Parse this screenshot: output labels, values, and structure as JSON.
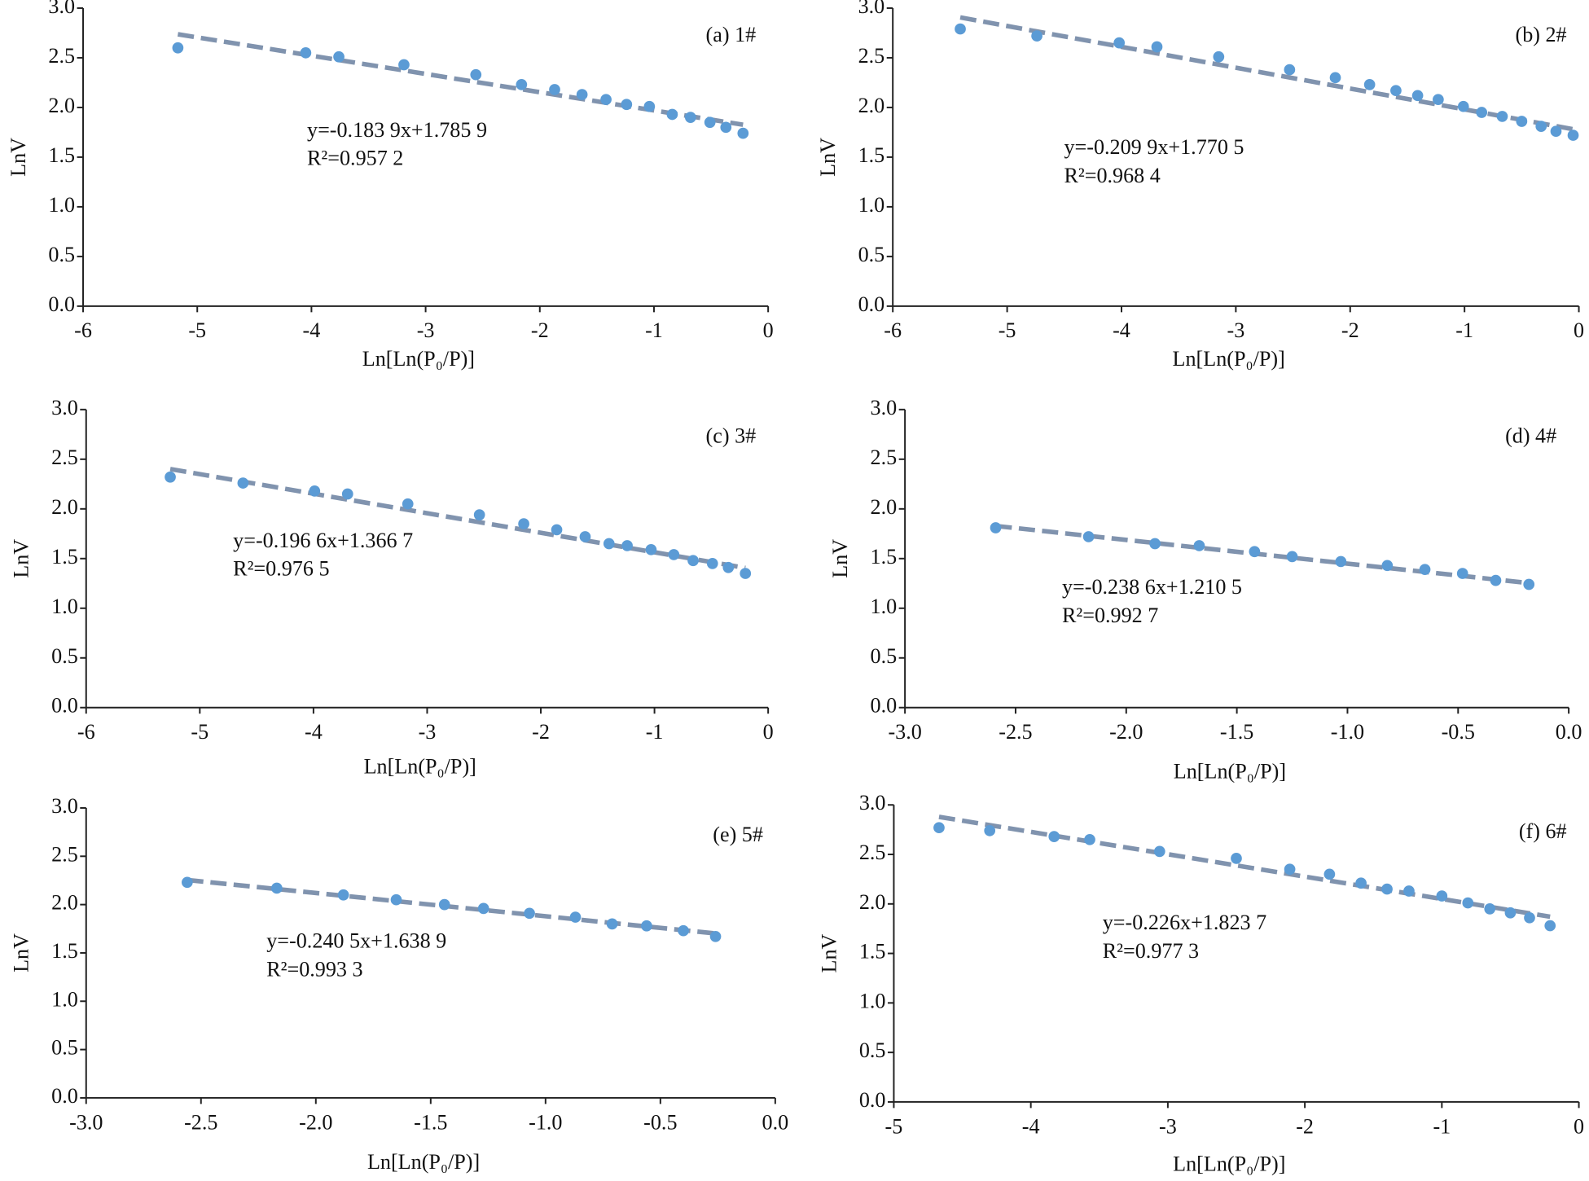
{
  "chart_data": [
    {
      "type": "scatter",
      "title": "(a) 1#",
      "x_label": "Ln[Ln(P₀/P)]",
      "y_label": "LnV",
      "equation": "y=-0.183 9x+1.785 9",
      "r_squared": "R²=0.957 2",
      "trendline": {
        "slope": -0.1839,
        "intercept": 1.7859
      },
      "color": "#5b9bd5",
      "trendline_color": "#8093ae",
      "x": [
        -5.17,
        -4.05,
        -3.76,
        -3.19,
        -2.56,
        -2.16,
        -1.87,
        -1.63,
        -1.42,
        -1.24,
        -1.04,
        -0.84,
        -0.68,
        -0.51,
        -0.37,
        -0.22
      ],
      "values": [
        2.6,
        2.55,
        2.51,
        2.43,
        2.33,
        2.23,
        2.18,
        2.13,
        2.08,
        2.03,
        2.01,
        1.93,
        1.9,
        1.85,
        1.8,
        1.74
      ],
      "xlim": [
        -6,
        0
      ],
      "ylim": [
        0,
        3
      ],
      "xticks": [
        -6,
        -5,
        -4,
        -3,
        -2,
        -1,
        0
      ],
      "yticks": [
        {
          "value": 0,
          "label": "0.0"
        },
        {
          "value": 0.5,
          "label": "0.5"
        },
        {
          "value": 1,
          "label": "1.0"
        },
        {
          "value": 1.5,
          "label": "1.5"
        },
        {
          "value": 2,
          "label": "2.0"
        },
        {
          "value": 2.5,
          "label": "2.5"
        },
        {
          "value": 3,
          "label": "3.0"
        }
      ]
    },
    {
      "type": "scatter",
      "title": "(b) 2#",
      "x_label": "Ln[Ln(P₀/P)]",
      "y_label": "LnV",
      "equation": "y=-0.209 9x+1.770 5",
      "r_squared": "R²=0.968 4",
      "trendline": {
        "slope": -0.2099,
        "intercept": 1.7705
      },
      "color": "#5b9bd5",
      "trendline_color": "#8093ae",
      "x": [
        -5.41,
        -4.74,
        -4.02,
        -3.69,
        -3.15,
        -2.53,
        -2.13,
        -1.83,
        -1.6,
        -1.41,
        -1.23,
        -1.01,
        -0.85,
        -0.67,
        -0.5,
        -0.33,
        -0.2,
        -0.05
      ],
      "values": [
        2.79,
        2.72,
        2.65,
        2.61,
        2.51,
        2.38,
        2.3,
        2.23,
        2.17,
        2.12,
        2.08,
        2.01,
        1.95,
        1.91,
        1.86,
        1.81,
        1.76,
        1.72
      ],
      "xlim": [
        -6,
        0
      ],
      "ylim": [
        0,
        3
      ],
      "xticks": [
        -6,
        -5,
        -4,
        -3,
        -2,
        -1,
        0
      ],
      "yticks": [
        {
          "value": 0,
          "label": "0.0"
        },
        {
          "value": 0.5,
          "label": "0.5"
        },
        {
          "value": 1,
          "label": "1.0"
        },
        {
          "value": 1.5,
          "label": "1.5"
        },
        {
          "value": 2,
          "label": "2.0"
        },
        {
          "value": 2.5,
          "label": "2.5"
        },
        {
          "value": 3,
          "label": "3.0"
        }
      ]
    },
    {
      "type": "scatter",
      "title": "(c) 3#",
      "x_label": "Ln[Ln(P₀/P)]",
      "y_label": "LnV",
      "equation": "y=-0.196 6x+1.366 7",
      "r_squared": "R²=0.976 5",
      "trendline": {
        "slope": -0.1966,
        "intercept": 1.3667
      },
      "color": "#5b9bd5",
      "trendline_color": "#8093ae",
      "x": [
        -5.26,
        -4.62,
        -3.99,
        -3.7,
        -3.17,
        -2.54,
        -2.15,
        -1.86,
        -1.61,
        -1.4,
        -1.24,
        -1.03,
        -0.83,
        -0.66,
        -0.49,
        -0.35,
        -0.2
      ],
      "values": [
        2.32,
        2.26,
        2.18,
        2.15,
        2.05,
        1.94,
        1.85,
        1.79,
        1.72,
        1.65,
        1.63,
        1.59,
        1.54,
        1.48,
        1.45,
        1.41,
        1.35
      ],
      "xlim": [
        -6,
        0
      ],
      "ylim": [
        0,
        3
      ],
      "xticks": [
        -6,
        -5,
        -4,
        -3,
        -2,
        -1,
        0
      ],
      "yticks": [
        {
          "value": 0,
          "label": "0.0"
        },
        {
          "value": 0.5,
          "label": "0.5"
        },
        {
          "value": 1,
          "label": "1.0"
        },
        {
          "value": 1.5,
          "label": "1.5"
        },
        {
          "value": 2,
          "label": "2.0"
        },
        {
          "value": 2.5,
          "label": "2.5"
        },
        {
          "value": 3,
          "label": "3.0"
        }
      ]
    },
    {
      "type": "scatter",
      "title": "(d) 4#",
      "x_label": "Ln[Ln(P₀/P)]",
      "y_label": "LnV",
      "equation": "y=-0.238 6x+1.210 5",
      "r_squared": "R²=0.992 7",
      "trendline": {
        "slope": -0.2386,
        "intercept": 1.2105
      },
      "color": "#5b9bd5",
      "trendline_color": "#8093ae",
      "x": [
        -2.59,
        -2.17,
        -1.87,
        -1.67,
        -1.42,
        -1.25,
        -1.03,
        -0.82,
        -0.65,
        -0.48,
        -0.33,
        -0.18
      ],
      "values": [
        1.81,
        1.72,
        1.65,
        1.63,
        1.57,
        1.52,
        1.47,
        1.43,
        1.39,
        1.35,
        1.28,
        1.24
      ],
      "xlim": [
        -3,
        0
      ],
      "ylim": [
        0,
        3
      ],
      "xticks": [
        {
          "value": -3,
          "label": "-3.0"
        },
        {
          "value": -2.5,
          "label": "-2.5"
        },
        {
          "value": -2,
          "label": "-2.0"
        },
        {
          "value": -1.5,
          "label": "-1.5"
        },
        {
          "value": -1,
          "label": "-1.0"
        },
        {
          "value": -0.5,
          "label": "-0.5"
        },
        {
          "value": 0,
          "label": "0.0"
        }
      ],
      "yticks": [
        {
          "value": 0,
          "label": "0.0"
        },
        {
          "value": 0.5,
          "label": "0.5"
        },
        {
          "value": 1,
          "label": "1.0"
        },
        {
          "value": 1.5,
          "label": "1.5"
        },
        {
          "value": 2,
          "label": "2.0"
        },
        {
          "value": 2.5,
          "label": "2.5"
        },
        {
          "value": 3,
          "label": "3.0"
        }
      ]
    },
    {
      "type": "scatter",
      "title": "(e) 5#",
      "x_label": "Ln[Ln(P₀/P)]",
      "y_label": "LnV",
      "equation": "y=-0.240 5x+1.638 9",
      "r_squared": "R²=0.993 3",
      "trendline": {
        "slope": -0.2405,
        "intercept": 1.6389
      },
      "color": "#5b9bd5",
      "trendline_color": "#8093ae",
      "x": [
        -2.56,
        -2.17,
        -1.88,
        -1.65,
        -1.44,
        -1.27,
        -1.07,
        -0.87,
        -0.71,
        -0.56,
        -0.4,
        -0.26
      ],
      "values": [
        2.23,
        2.17,
        2.1,
        2.05,
        2.0,
        1.96,
        1.91,
        1.87,
        1.8,
        1.78,
        1.73,
        1.67
      ],
      "xlim": [
        -3,
        0
      ],
      "ylim": [
        0,
        3
      ],
      "xticks": [
        {
          "value": -3,
          "label": "-3.0"
        },
        {
          "value": -2.5,
          "label": "-2.5"
        },
        {
          "value": -2,
          "label": "-2.0"
        },
        {
          "value": -1.5,
          "label": "-1.5"
        },
        {
          "value": -1,
          "label": "-1.0"
        },
        {
          "value": -0.5,
          "label": "-0.5"
        },
        {
          "value": 0,
          "label": "0.0"
        }
      ],
      "yticks": [
        {
          "value": 0,
          "label": "0.0"
        },
        {
          "value": 0.5,
          "label": "0.5"
        },
        {
          "value": 1,
          "label": "1.0"
        },
        {
          "value": 1.5,
          "label": "1.5"
        },
        {
          "value": 2,
          "label": "2.0"
        },
        {
          "value": 2.5,
          "label": "2.5"
        },
        {
          "value": 3,
          "label": "3.0"
        }
      ]
    },
    {
      "type": "scatter",
      "title": "(f) 6#",
      "x_label": "Ln[Ln(P₀/P)]",
      "y_label": "LnV",
      "equation": "y=-0.226x+1.823 7",
      "r_squared": "R²=0.977 3",
      "trendline": {
        "slope": -0.226,
        "intercept": 1.8237
      },
      "color": "#5b9bd5",
      "trendline_color": "#8093ae",
      "x": [
        -4.67,
        -4.3,
        -3.83,
        -3.57,
        -3.06,
        -2.5,
        -2.11,
        -1.82,
        -1.59,
        -1.4,
        -1.24,
        -1.0,
        -0.81,
        -0.65,
        -0.5,
        -0.36,
        -0.21
      ],
      "values": [
        2.77,
        2.74,
        2.68,
        2.65,
        2.53,
        2.46,
        2.35,
        2.3,
        2.21,
        2.15,
        2.13,
        2.08,
        2.01,
        1.95,
        1.91,
        1.86,
        1.78
      ],
      "xlim": [
        -5,
        0
      ],
      "ylim": [
        0,
        3
      ],
      "xticks": [
        -5,
        -4,
        -3,
        -2,
        -1,
        0
      ],
      "yticks": [
        {
          "value": 0,
          "label": "0.0"
        },
        {
          "value": 0.5,
          "label": "0.5"
        },
        {
          "value": 1,
          "label": "1.0"
        },
        {
          "value": 1.5,
          "label": "1.5"
        },
        {
          "value": 2,
          "label": "2.0"
        },
        {
          "value": 2.5,
          "label": "2.5"
        },
        {
          "value": 3,
          "label": "3.0"
        }
      ]
    }
  ]
}
